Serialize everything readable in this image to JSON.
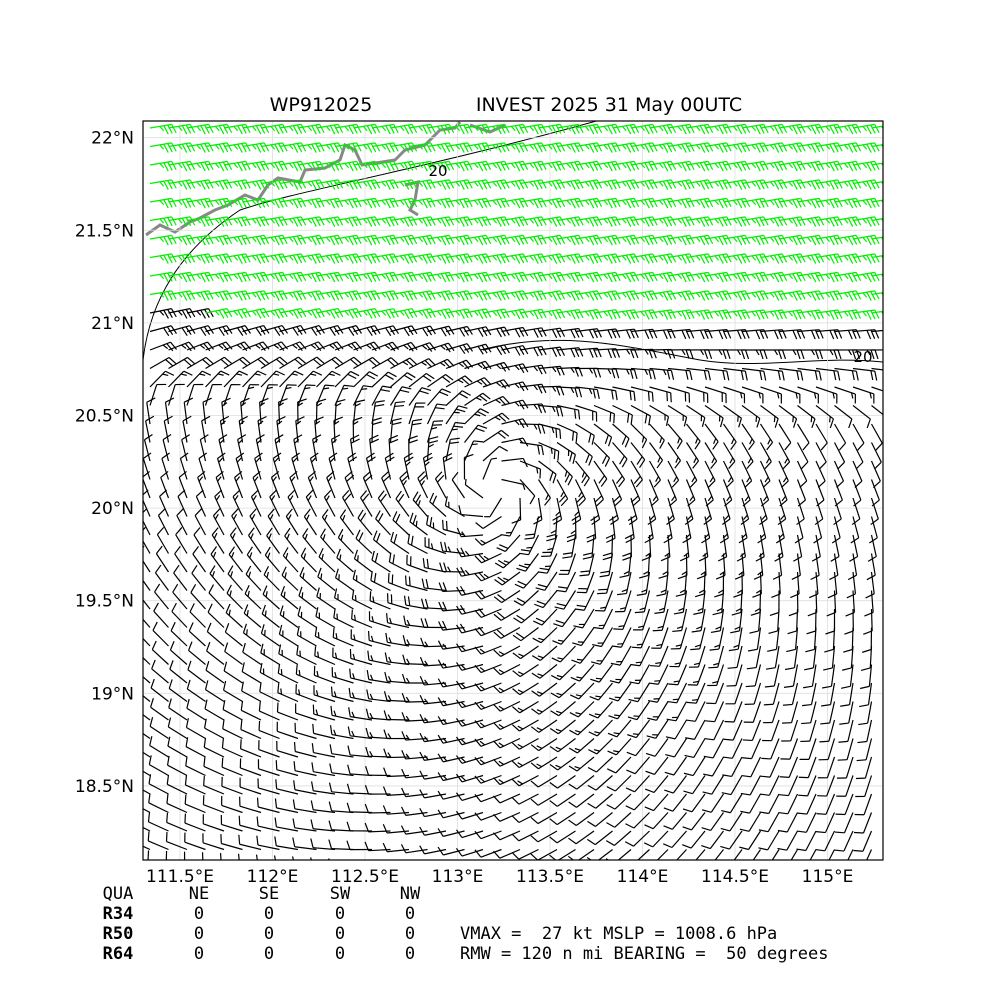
{
  "header": {
    "storm_id": "WP912025",
    "title": "INVEST 2025 31 May 00UTC"
  },
  "map": {
    "xlim": [
      111.3,
      115.3
    ],
    "ylim": [
      18.1,
      22.09
    ],
    "xticks": [
      {
        "value": 111.5,
        "label": "111.5°E"
      },
      {
        "value": 112,
        "label": "112°E"
      },
      {
        "value": 112.5,
        "label": "112.5°E"
      },
      {
        "value": 113,
        "label": "113°E"
      },
      {
        "value": 113.5,
        "label": "113.5°E"
      },
      {
        "value": 114,
        "label": "114°E"
      },
      {
        "value": 114.5,
        "label": "114.5°E"
      },
      {
        "value": 115,
        "label": "115°E"
      }
    ],
    "yticks": [
      {
        "value": 18.5,
        "label": "18.5°N"
      },
      {
        "value": 19,
        "label": "19°N"
      },
      {
        "value": 19.5,
        "label": "19.5°N"
      },
      {
        "value": 20,
        "label": "20°N"
      },
      {
        "value": 20.5,
        "label": "20.5°N"
      },
      {
        "value": 21,
        "label": "21°N"
      },
      {
        "value": 21.5,
        "label": "21.5°N"
      },
      {
        "value": 22,
        "label": "22°N"
      }
    ],
    "contour_labels": [
      "20",
      "20"
    ]
  },
  "table": {
    "header": [
      "QUA",
      "NE",
      "SE",
      "SW",
      "NW"
    ],
    "rows": [
      [
        "R34",
        "0",
        "0",
        "0",
        "0"
      ],
      [
        "R50",
        "0",
        "0",
        "0",
        "0"
      ],
      [
        "R64",
        "0",
        "0",
        "0",
        "0"
      ]
    ]
  },
  "info": [
    "VMAX =  27 kt MSLP = 1008.6 hPa",
    "RMW = 120 n mi BEARING =  50 degrees"
  ]
}
